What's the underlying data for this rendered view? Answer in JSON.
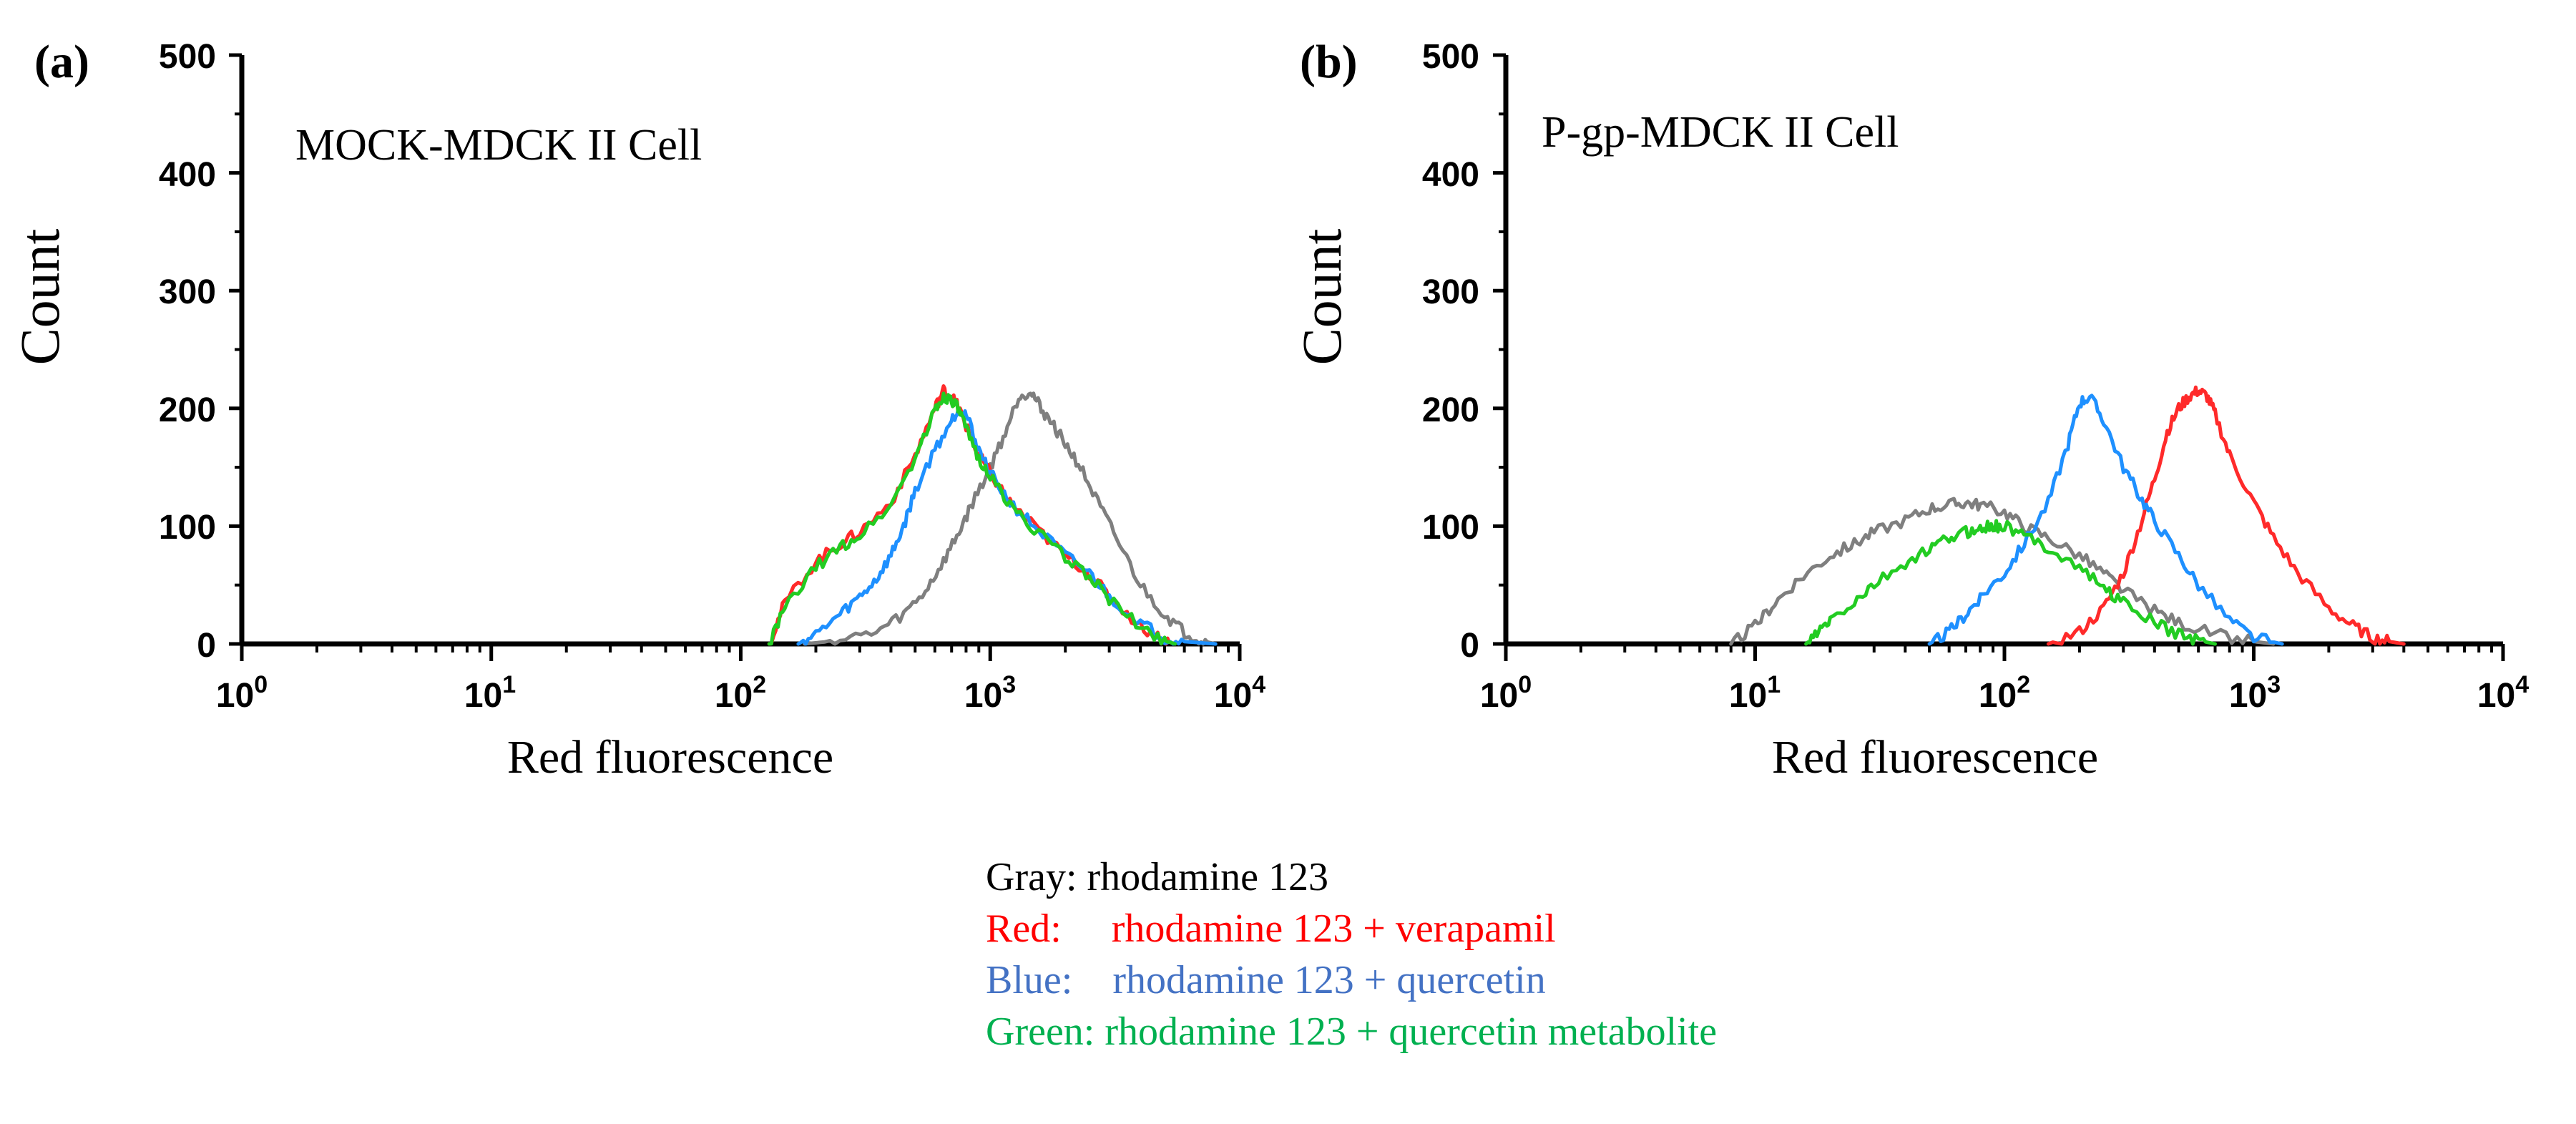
{
  "chart_data": [
    {
      "type": "line",
      "panel_label": "(a)",
      "annotation": "MOCK-MDCK II Cell",
      "xlabel": "Red fluorescence",
      "ylabel": "Count",
      "xscale": "log",
      "xlim": [
        1,
        10000
      ],
      "ylim": [
        0,
        500
      ],
      "x_ticks": [
        {
          "base": "10",
          "exp": "0"
        },
        {
          "base": "10",
          "exp": "1"
        },
        {
          "base": "10",
          "exp": "2"
        },
        {
          "base": "10",
          "exp": "3"
        },
        {
          "base": "10",
          "exp": "4"
        }
      ],
      "y_ticks": [
        "0",
        "100",
        "200",
        "300",
        "400",
        "500"
      ],
      "series": [
        {
          "name": "Gray",
          "color": "#7f7f7f",
          "x": [
            180,
            250,
            350,
            450,
            550,
            650,
            750,
            850,
            1000,
            1150,
            1300,
            1450,
            1600,
            1800,
            2000,
            2300,
            2700,
            3200,
            4000,
            5000,
            6000,
            7000,
            8000
          ],
          "y": [
            0,
            3,
            10,
            25,
            45,
            70,
            95,
            120,
            150,
            180,
            210,
            215,
            200,
            185,
            170,
            150,
            120,
            90,
            50,
            25,
            10,
            3,
            0
          ]
        },
        {
          "name": "Red",
          "color": "#ff2a2a",
          "x": [
            130,
            150,
            200,
            250,
            300,
            400,
            500,
            600,
            650,
            700,
            750,
            800,
            900,
            1000,
            1200,
            1500,
            2000,
            2500,
            3000,
            4000,
            5000,
            5500
          ],
          "y": [
            0,
            35,
            70,
            85,
            95,
            120,
            160,
            200,
            215,
            210,
            200,
            185,
            160,
            145,
            120,
            100,
            75,
            60,
            40,
            15,
            3,
            0
          ]
        },
        {
          "name": "Blue",
          "color": "#1e90ff",
          "x": [
            170,
            200,
            250,
            300,
            350,
            400,
            450,
            500,
            600,
            700,
            750,
            800,
            900,
            1000,
            1200,
            1500,
            2000,
            2500,
            3000,
            4000,
            5000,
            6000,
            8000
          ],
          "y": [
            0,
            8,
            25,
            40,
            55,
            75,
            100,
            130,
            165,
            190,
            200,
            195,
            165,
            145,
            120,
            100,
            75,
            60,
            40,
            18,
            5,
            2,
            0
          ]
        },
        {
          "name": "Green",
          "color": "#22cc22",
          "x": [
            130,
            150,
            200,
            250,
            300,
            400,
            500,
            600,
            650,
            700,
            750,
            800,
            900,
            1000,
            1200,
            1500,
            2000,
            2500,
            3000,
            4000,
            5000,
            5500
          ],
          "y": [
            0,
            30,
            65,
            82,
            92,
            118,
            158,
            198,
            210,
            208,
            198,
            182,
            158,
            142,
            118,
            98,
            73,
            58,
            38,
            14,
            3,
            0
          ]
        }
      ]
    },
    {
      "type": "line",
      "panel_label": "(b)",
      "annotation": "P-gp-MDCK II Cell",
      "xlabel": "Red fluorescence",
      "ylabel": "Count",
      "xscale": "log",
      "xlim": [
        1,
        10000
      ],
      "ylim": [
        0,
        500
      ],
      "x_ticks": [
        {
          "base": "10",
          "exp": "0"
        },
        {
          "base": "10",
          "exp": "1"
        },
        {
          "base": "10",
          "exp": "2"
        },
        {
          "base": "10",
          "exp": "3"
        },
        {
          "base": "10",
          "exp": "4"
        }
      ],
      "y_ticks": [
        "0",
        "100",
        "200",
        "300",
        "400",
        "500"
      ],
      "series": [
        {
          "name": "Gray",
          "color": "#7f7f7f",
          "x": [
            8,
            10,
            12,
            15,
            20,
            25,
            30,
            40,
            50,
            60,
            70,
            80,
            100,
            120,
            150,
            200,
            250,
            300,
            400,
            500,
            700,
            1000,
            1200
          ],
          "y": [
            0,
            15,
            35,
            55,
            75,
            85,
            95,
            105,
            115,
            118,
            120,
            118,
            112,
            100,
            90,
            75,
            60,
            45,
            28,
            18,
            8,
            2,
            0
          ]
        },
        {
          "name": "Red",
          "color": "#ff2a2a",
          "x": [
            150,
            200,
            250,
            300,
            350,
            400,
            450,
            500,
            550,
            600,
            650,
            700,
            800,
            1000,
            1200,
            1500,
            2000,
            2500,
            3000,
            3500,
            4000
          ],
          "y": [
            0,
            10,
            30,
            60,
            100,
            140,
            180,
            200,
            210,
            215,
            210,
            195,
            160,
            120,
            90,
            60,
            30,
            15,
            5,
            2,
            0
          ]
        },
        {
          "name": "Blue",
          "color": "#1e90ff",
          "x": [
            50,
            60,
            70,
            80,
            100,
            120,
            150,
            180,
            200,
            220,
            250,
            300,
            350,
            400,
            500,
            600,
            800,
            1000,
            1300
          ],
          "y": [
            0,
            10,
            25,
            40,
            60,
            85,
            120,
            170,
            205,
            210,
            190,
            150,
            125,
            105,
            75,
            50,
            20,
            5,
            0
          ]
        },
        {
          "name": "Green",
          "color": "#22cc22",
          "x": [
            16,
            18,
            20,
            25,
            30,
            40,
            50,
            60,
            70,
            80,
            90,
            100,
            120,
            150,
            200,
            250,
            300,
            400,
            500,
            600,
            700
          ],
          "y": [
            0,
            10,
            20,
            35,
            50,
            68,
            80,
            90,
            95,
            98,
            100,
            100,
            92,
            82,
            65,
            48,
            35,
            18,
            8,
            3,
            0
          ]
        }
      ]
    }
  ],
  "legend": [
    {
      "label": "Gray: ",
      "text": "rhodamine 123",
      "color": "#000000"
    },
    {
      "label": "Red:     ",
      "text": "rhodamine 123 + verapamil",
      "color": "#ff0000"
    },
    {
      "label": "Blue:    ",
      "text": "rhodamine 123 + quercetin",
      "color": "#4472c4"
    },
    {
      "label": "Green: ",
      "text": "rhodamine 123 + quercetin metabolite",
      "color": "#00b050"
    }
  ]
}
